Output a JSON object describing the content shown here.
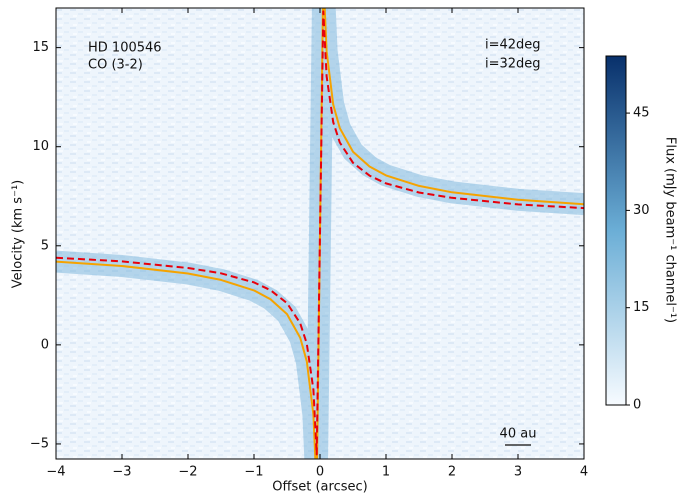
{
  "chart_data": {
    "type": "line",
    "xlabel": "Offset (arcsec)",
    "ylabel": "Velocity (km s⁻¹)",
    "annotations": [
      "HD 100546",
      "CO (3-2)",
      "40 au"
    ],
    "x": [
      -4,
      -3,
      -2,
      -1.5,
      -1,
      -0.75,
      -0.5,
      -0.3,
      -0.2,
      -0.1,
      -0.05,
      0.05,
      0.1,
      0.2,
      0.3,
      0.5,
      0.75,
      1,
      1.5,
      2,
      3,
      4
    ],
    "series": [
      {
        "name": "i=42deg",
        "color": "#e8000b",
        "dashed": true,
        "values": [
          4.4,
          4.21,
          3.88,
          3.61,
          3.15,
          2.76,
          2.11,
          1.09,
          0.06,
          -2.26,
          -5.53,
          16.83,
          13.56,
          11.24,
          10.21,
          9.19,
          8.54,
          8.15,
          7.69,
          7.42,
          7.09,
          6.9
        ]
      },
      {
        "name": "i=32deg",
        "color": "#f5a300",
        "dashed": false,
        "values": [
          4.2,
          3.98,
          3.6,
          3.28,
          2.75,
          2.3,
          1.55,
          0.36,
          -0.83,
          -3.52,
          -7.32,
          18.62,
          14.82,
          12.13,
          10.94,
          9.75,
          9.0,
          8.55,
          8.02,
          7.7,
          7.32,
          7.1
        ]
      }
    ],
    "xlim": [
      -4,
      4
    ],
    "xticks": [
      {
        "value": -4,
        "label": "−4"
      },
      {
        "value": -3,
        "label": "−3"
      },
      {
        "value": -2,
        "label": "−2"
      },
      {
        "value": -1,
        "label": "−1"
      },
      0,
      1,
      2,
      3,
      4
    ],
    "ylim": [
      -5.76,
      17.0
    ],
    "yticks": [
      {
        "value": -5,
        "label": "−5"
      },
      0,
      5,
      10,
      15
    ],
    "colorbar": {
      "label": "Flux (mJy beam⁻¹ channel⁻¹)",
      "lim": [
        0,
        53.8
      ],
      "ticks": [
        0,
        15,
        30,
        45
      ],
      "colors": [
        "#f7fbff",
        "#6baed6",
        "#08306b"
      ]
    }
  }
}
